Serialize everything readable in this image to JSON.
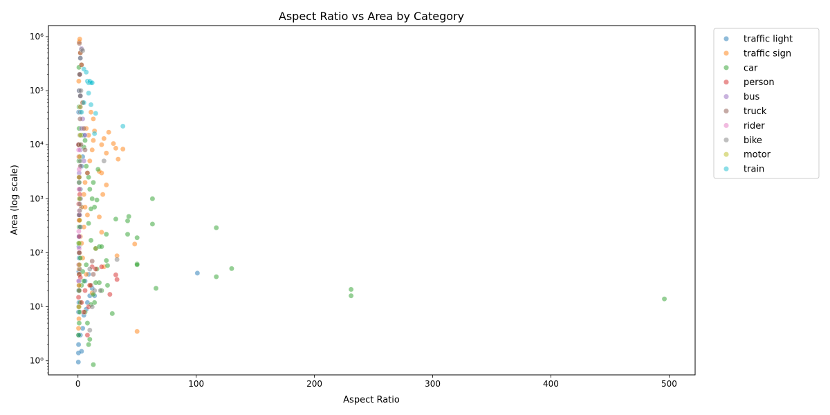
{
  "chart_data": {
    "type": "scatter",
    "title": "Aspect Ratio vs Area by Category",
    "xlabel": "Aspect Ratio",
    "ylabel": "Area (log scale)",
    "xlim": [
      -25,
      522
    ],
    "ylim": [
      0.55,
      1600000
    ],
    "yscale": "log",
    "x_ticks": [
      0,
      100,
      200,
      300,
      400,
      500
    ],
    "y_ticks": [
      {
        "value": 1,
        "label": "10⁰"
      },
      {
        "value": 10,
        "label": "10¹"
      },
      {
        "value": 100,
        "label": "10²"
      },
      {
        "value": 1000,
        "label": "10³"
      },
      {
        "value": 10000,
        "label": "10⁴"
      },
      {
        "value": 100000,
        "label": "10⁵"
      },
      {
        "value": 1000000,
        "label": "10⁶"
      }
    ],
    "grid": false,
    "legend_position": "outside-top-right",
    "series": [
      {
        "name": "traffic light",
        "color": "#1f77b4",
        "points": [
          [
            0.3,
            0.95
          ],
          [
            0.4,
            1.4
          ],
          [
            3,
            1.5
          ],
          [
            0.5,
            2
          ],
          [
            0.6,
            3
          ],
          [
            2,
            3
          ],
          [
            4,
            4
          ],
          [
            0.5,
            8
          ],
          [
            0.8,
            12
          ],
          [
            0.5,
            20
          ],
          [
            1,
            30
          ],
          [
            0.7,
            45
          ],
          [
            0.9,
            60
          ],
          [
            1,
            80
          ],
          [
            1.2,
            100
          ],
          [
            0.8,
            130
          ],
          [
            1.5,
            150
          ],
          [
            1,
            200
          ],
          [
            2,
            300
          ],
          [
            1,
            500
          ],
          [
            3,
            700
          ],
          [
            1.5,
            1000
          ],
          [
            2,
            1500
          ],
          [
            1.2,
            2500
          ],
          [
            3,
            4000
          ],
          [
            4,
            6000
          ],
          [
            0.5,
            10000
          ],
          [
            5,
            15000
          ],
          [
            5,
            7
          ],
          [
            7,
            9
          ],
          [
            8,
            12
          ],
          [
            10,
            16
          ],
          [
            12,
            22
          ],
          [
            6,
            30
          ],
          [
            9,
            40
          ],
          [
            14,
            16
          ],
          [
            101,
            42
          ],
          [
            0.6,
            40000
          ],
          [
            2,
            80000
          ]
        ]
      },
      {
        "name": "traffic sign",
        "color": "#ff7f0e",
        "points": [
          [
            0.5,
            4
          ],
          [
            0.8,
            6
          ],
          [
            1,
            10
          ],
          [
            1.2,
            20
          ],
          [
            0.9,
            50
          ],
          [
            1.5,
            100
          ],
          [
            2,
            200
          ],
          [
            1,
            400
          ],
          [
            3,
            700
          ],
          [
            5,
            1200
          ],
          [
            6,
            2000
          ],
          [
            8,
            3000
          ],
          [
            10,
            5000
          ],
          [
            12,
            8000
          ],
          [
            13,
            12000
          ],
          [
            14,
            18000
          ],
          [
            13,
            30000
          ],
          [
            11,
            40000
          ],
          [
            20,
            10000
          ],
          [
            22,
            13000
          ],
          [
            26,
            17000
          ],
          [
            30,
            10500
          ],
          [
            32,
            8600
          ],
          [
            38,
            8300
          ],
          [
            34,
            5400
          ],
          [
            24,
            7000
          ],
          [
            20,
            3000
          ],
          [
            18,
            3200
          ],
          [
            21,
            1200
          ],
          [
            24,
            1800
          ],
          [
            20,
            240
          ],
          [
            22,
            55
          ],
          [
            15,
            120
          ],
          [
            18,
            460
          ],
          [
            33,
            88
          ],
          [
            48,
            145
          ],
          [
            50,
            3.5
          ],
          [
            2,
            500000
          ],
          [
            1,
            800000
          ],
          [
            1.5,
            900000
          ],
          [
            3,
            300000
          ],
          [
            0.7,
            150000
          ],
          [
            4,
            60000
          ],
          [
            7,
            20000
          ],
          [
            9,
            15000
          ],
          [
            6,
            700
          ],
          [
            8,
            500
          ],
          [
            5,
            300
          ],
          [
            3,
            150
          ],
          [
            4,
            80
          ],
          [
            7,
            40
          ],
          [
            10,
            25
          ],
          [
            12,
            18
          ]
        ]
      },
      {
        "name": "car",
        "color": "#2ca02c",
        "points": [
          [
            0.5,
            3
          ],
          [
            1,
            5
          ],
          [
            1.5,
            8
          ],
          [
            2,
            12
          ],
          [
            0.8,
            20
          ],
          [
            1.2,
            40
          ],
          [
            2,
            80
          ],
          [
            0.6,
            150
          ],
          [
            1,
            300
          ],
          [
            1.5,
            600
          ],
          [
            2,
            1000
          ],
          [
            1,
            2000
          ],
          [
            0.8,
            5000
          ],
          [
            1.2,
            10000
          ],
          [
            1,
            20000
          ],
          [
            0.9,
            50000
          ],
          [
            1.1,
            100000
          ],
          [
            1.3,
            200000
          ],
          [
            0.8,
            270000
          ],
          [
            2,
            400000
          ],
          [
            3,
            15000
          ],
          [
            5,
            9000
          ],
          [
            7,
            4000
          ],
          [
            9,
            2500
          ],
          [
            10,
            1500
          ],
          [
            12,
            1000
          ],
          [
            14,
            700
          ],
          [
            16,
            950
          ],
          [
            17,
            3500
          ],
          [
            15,
            120
          ],
          [
            18,
            130
          ],
          [
            20,
            130
          ],
          [
            16,
            50
          ],
          [
            18,
            28
          ],
          [
            20,
            20
          ],
          [
            14,
            12
          ],
          [
            13,
            0.85
          ],
          [
            9,
            2
          ],
          [
            10,
            2.5
          ],
          [
            8,
            5
          ],
          [
            6,
            8
          ],
          [
            5,
            30
          ],
          [
            32,
            420
          ],
          [
            42,
            390
          ],
          [
            43,
            470
          ],
          [
            42,
            220
          ],
          [
            50,
            190
          ],
          [
            63,
            1000
          ],
          [
            63,
            340
          ],
          [
            29,
            7.5
          ],
          [
            24,
            220
          ],
          [
            24,
            72
          ],
          [
            25,
            58
          ],
          [
            25,
            25
          ],
          [
            50,
            62
          ],
          [
            50,
            60
          ],
          [
            66,
            22
          ],
          [
            117,
            290
          ],
          [
            117,
            36
          ],
          [
            130,
            51
          ],
          [
            231,
            21
          ],
          [
            231,
            16
          ],
          [
            496,
            14
          ],
          [
            11,
            11
          ],
          [
            13,
            17
          ],
          [
            15,
            28
          ],
          [
            7,
            60
          ],
          [
            4,
            45
          ],
          [
            3,
            25
          ],
          [
            11,
            170
          ],
          [
            9,
            350
          ],
          [
            11,
            650
          ],
          [
            13,
            2000
          ],
          [
            6,
            12000
          ]
        ]
      },
      {
        "name": "person",
        "color": "#d62728",
        "points": [
          [
            0.5,
            15
          ],
          [
            0.8,
            25
          ],
          [
            1,
            40
          ],
          [
            0.6,
            60
          ],
          [
            1.2,
            100
          ],
          [
            0.9,
            200
          ],
          [
            1,
            400
          ],
          [
            0.7,
            800
          ],
          [
            1.5,
            1200
          ],
          [
            1,
            2500
          ],
          [
            0.8,
            6000
          ],
          [
            0.5,
            10000
          ],
          [
            2,
            35
          ],
          [
            3,
            12
          ],
          [
            5,
            8
          ],
          [
            8,
            3
          ],
          [
            10,
            25
          ],
          [
            12,
            55
          ],
          [
            15,
            50
          ],
          [
            20,
            55
          ],
          [
            32,
            39
          ],
          [
            33,
            32
          ],
          [
            27,
            17
          ],
          [
            9,
            10
          ],
          [
            6,
            20
          ]
        ]
      },
      {
        "name": "bus",
        "color": "#9467bd",
        "points": [
          [
            1,
            200
          ],
          [
            1.5,
            500
          ],
          [
            2,
            1000
          ],
          [
            1,
            3000
          ],
          [
            2,
            8000
          ],
          [
            3,
            20000
          ],
          [
            2,
            50000
          ],
          [
            1,
            100000
          ],
          [
            1.5,
            200000
          ],
          [
            2,
            400000
          ],
          [
            3,
            600000
          ],
          [
            4,
            30000
          ],
          [
            6,
            15000
          ],
          [
            5,
            5000
          ]
        ]
      },
      {
        "name": "truck",
        "color": "#8c564b",
        "points": [
          [
            1,
            500
          ],
          [
            1.5,
            1500
          ],
          [
            2,
            4000
          ],
          [
            2.5,
            10000
          ],
          [
            1.8,
            30000
          ],
          [
            2,
            80000
          ],
          [
            1.5,
            200000
          ],
          [
            2,
            500000
          ],
          [
            1.2,
            750000
          ],
          [
            3,
            300000
          ],
          [
            4,
            60000
          ],
          [
            5,
            20000
          ],
          [
            6,
            8000
          ],
          [
            8,
            3000
          ],
          [
            11,
            25
          ],
          [
            13,
            40
          ],
          [
            12,
            70
          ]
        ]
      },
      {
        "name": "rider",
        "color": "#e377c2",
        "points": [
          [
            0.5,
            30
          ],
          [
            0.8,
            60
          ],
          [
            1,
            120
          ],
          [
            0.7,
            250
          ],
          [
            1.2,
            600
          ],
          [
            0.9,
            1500
          ],
          [
            1,
            3500
          ],
          [
            0.6,
            8000
          ]
        ]
      },
      {
        "name": "bike",
        "color": "#7f7f7f",
        "points": [
          [
            0.5,
            10
          ],
          [
            1,
            20
          ],
          [
            1.5,
            50
          ],
          [
            1,
            100
          ],
          [
            2,
            300
          ],
          [
            1.5,
            800
          ],
          [
            1,
            2000
          ],
          [
            2,
            5000
          ],
          [
            1.5,
            15000
          ],
          [
            2,
            40000
          ],
          [
            2.5,
            100000
          ],
          [
            3,
            580000
          ],
          [
            4,
            550000
          ],
          [
            10,
            3.7
          ],
          [
            12,
            10
          ],
          [
            14,
            20
          ],
          [
            33,
            75
          ],
          [
            22,
            5000
          ],
          [
            19,
            20
          ],
          [
            10,
            50
          ]
        ]
      },
      {
        "name": "motor",
        "color": "#bcbd22",
        "points": [
          [
            0.8,
            10
          ],
          [
            1,
            25
          ],
          [
            1.2,
            60
          ],
          [
            1,
            150
          ],
          [
            1.5,
            400
          ],
          [
            1.2,
            1000
          ],
          [
            1,
            2500
          ],
          [
            1.5,
            6000
          ],
          [
            2,
            15000
          ],
          [
            2,
            50000
          ]
        ]
      },
      {
        "name": "train",
        "color": "#17becf",
        "points": [
          [
            5,
            250000
          ],
          [
            7,
            220000
          ],
          [
            8,
            150000
          ],
          [
            9,
            140000
          ],
          [
            10,
            150000
          ],
          [
            10,
            145000
          ],
          [
            11,
            140000
          ],
          [
            12,
            140000
          ],
          [
            9,
            90000
          ],
          [
            11,
            55000
          ],
          [
            15,
            38000
          ],
          [
            14,
            16000
          ],
          [
            38,
            22000
          ],
          [
            3,
            40000
          ],
          [
            5,
            60000
          ]
        ]
      }
    ]
  }
}
